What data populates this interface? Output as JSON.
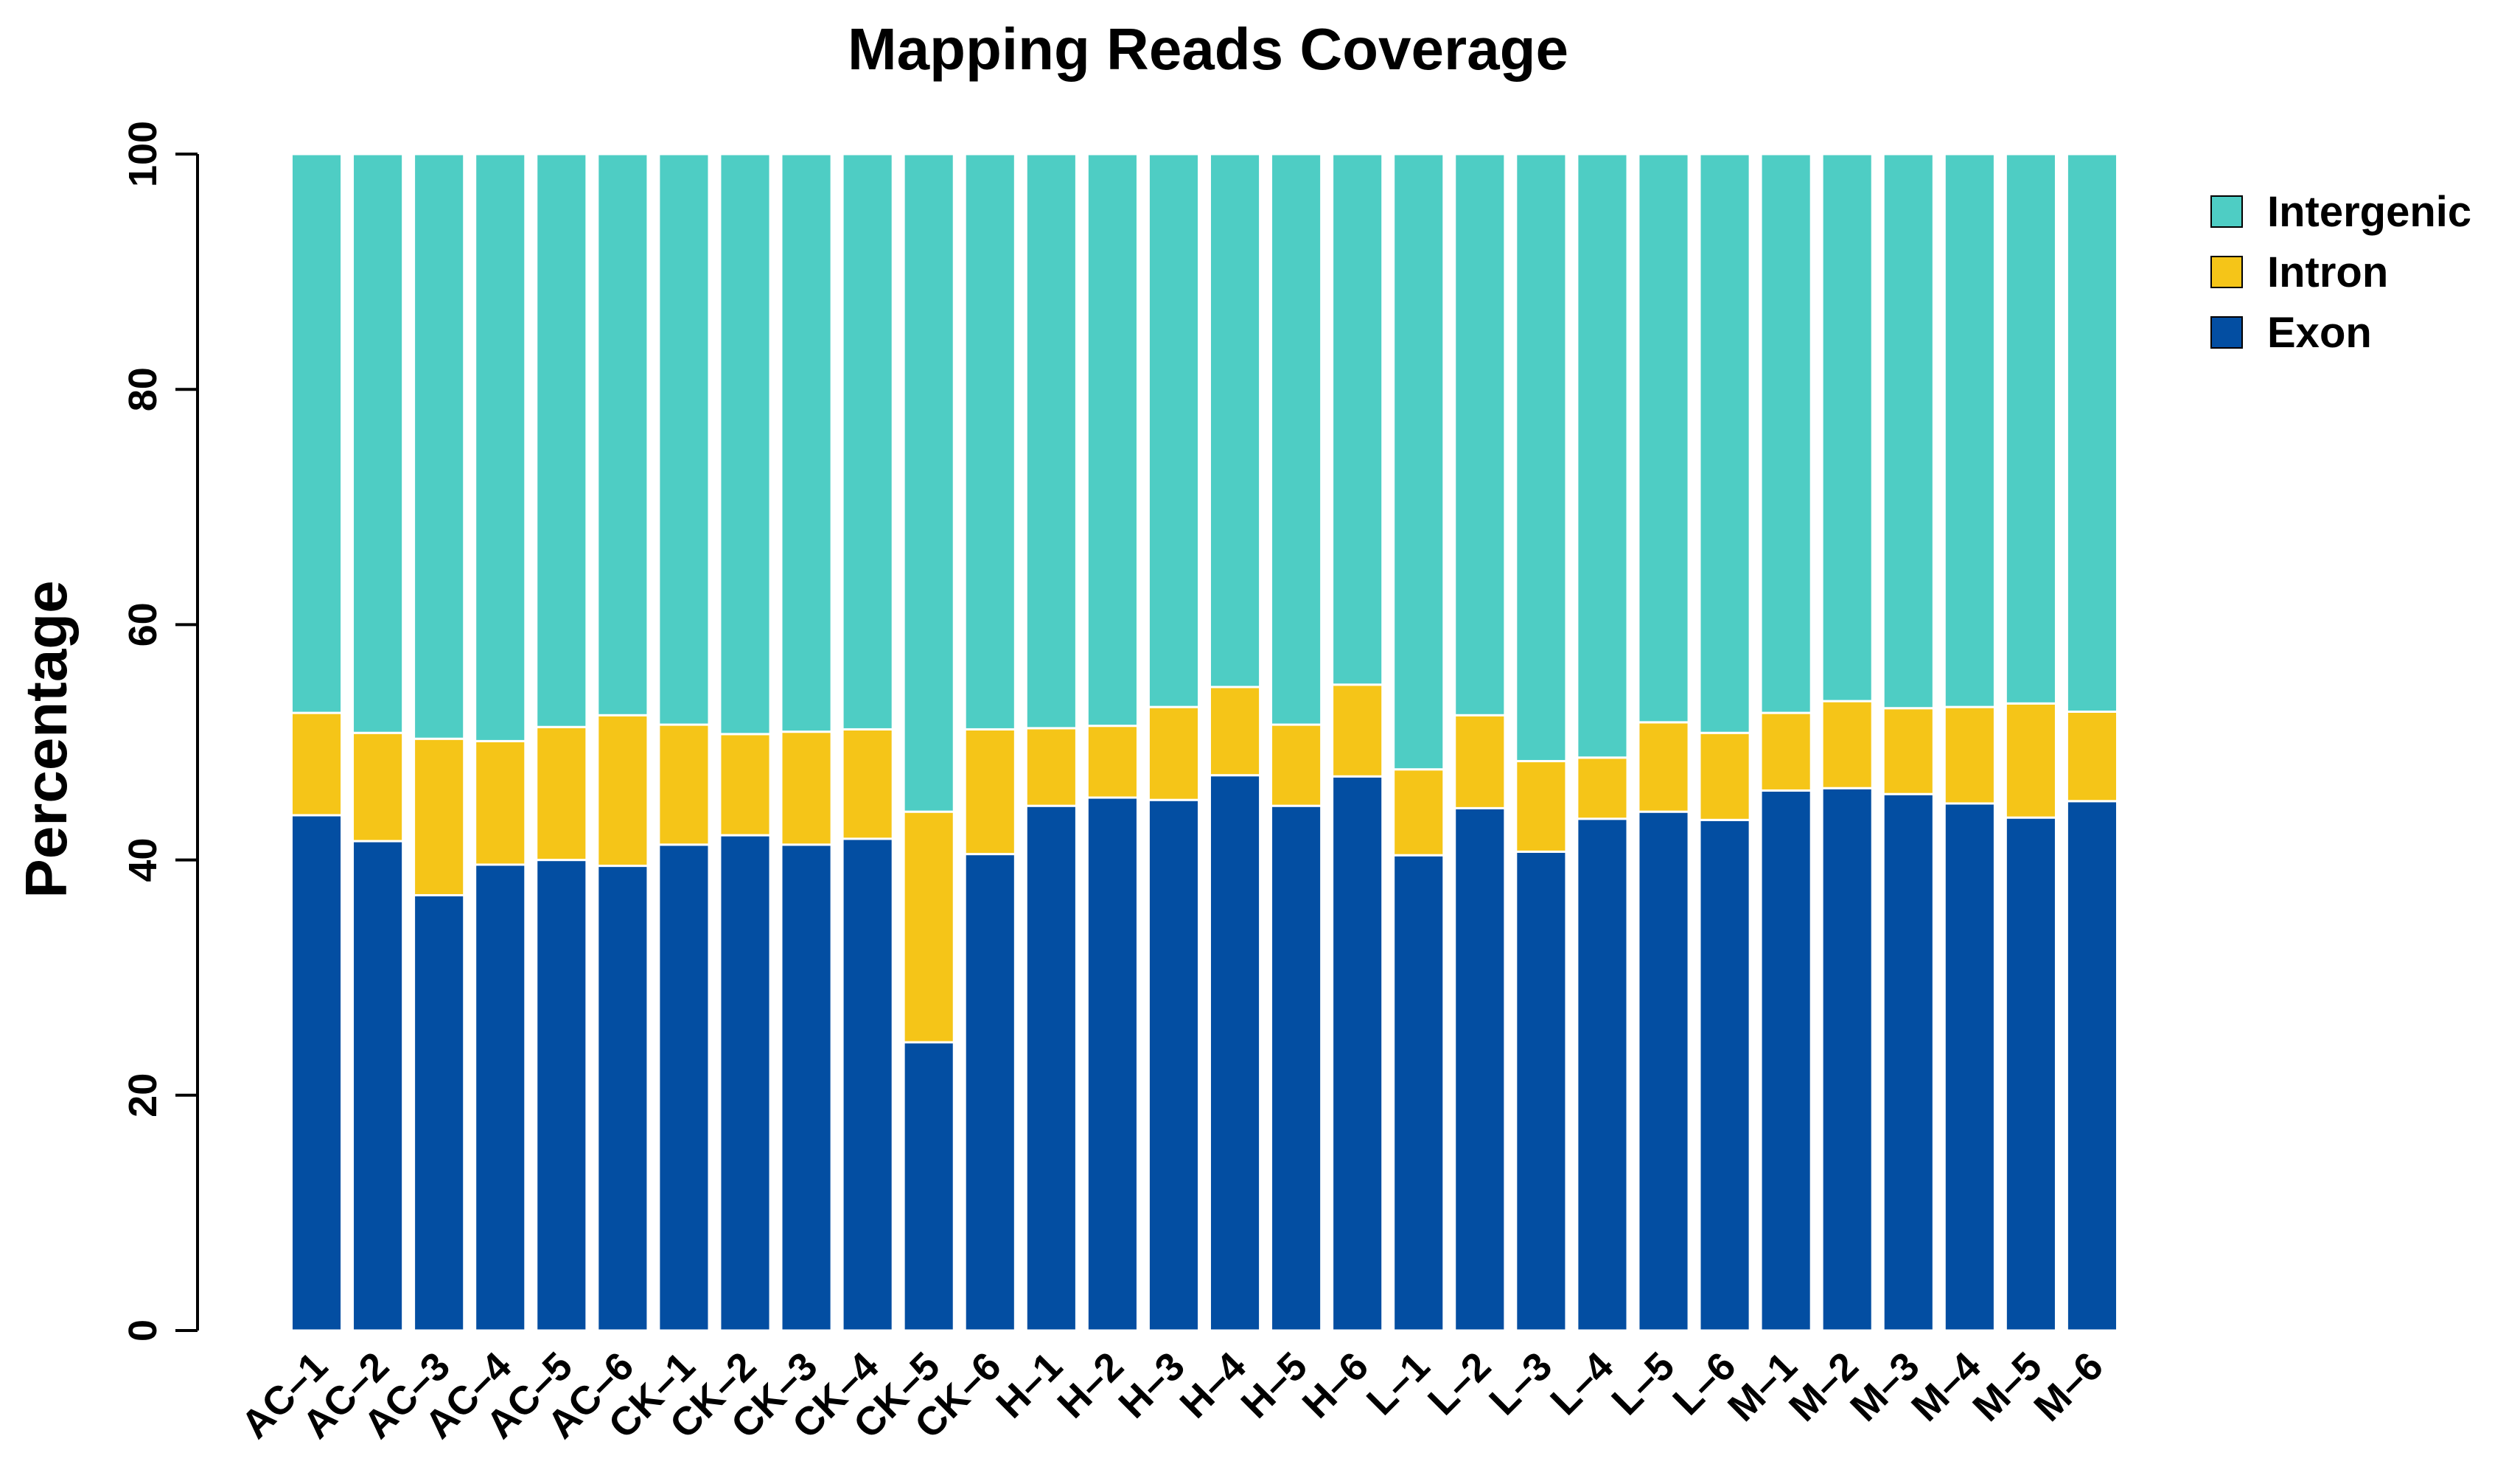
{
  "chart_data": {
    "type": "bar",
    "stacked": true,
    "title": "Mapping Reads Coverage",
    "xlabel": "",
    "ylabel": "Percentage",
    "ylim": [
      0,
      100
    ],
    "yticks": [
      0,
      20,
      40,
      60,
      80,
      100
    ],
    "legend_position": "top-right",
    "categories": [
      "AC–1",
      "AC–2",
      "AC–3",
      "AC–4",
      "AC–5",
      "AC–6",
      "CK–1",
      "CK–2",
      "CK–3",
      "CK–4",
      "CK–5",
      "CK–6",
      "H–1",
      "H–2",
      "H–3",
      "H–4",
      "H–5",
      "H–6",
      "L–1",
      "L–2",
      "L–3",
      "L–4",
      "L–5",
      "L–6",
      "M–1",
      "M–2",
      "M–3",
      "M–4",
      "M–5",
      "M–6"
    ],
    "series": [
      {
        "name": "Exon",
        "color": "#034EA2",
        "values": [
          43.8,
          41.6,
          37.0,
          39.6,
          40.0,
          39.5,
          41.3,
          42.1,
          41.3,
          41.8,
          24.5,
          40.5,
          44.6,
          45.3,
          45.1,
          47.2,
          44.6,
          47.1,
          40.4,
          44.4,
          40.7,
          43.5,
          44.1,
          43.4,
          45.9,
          46.1,
          45.6,
          44.8,
          43.6,
          45.0
        ]
      },
      {
        "name": "Intron",
        "color": "#F5C518",
        "values": [
          8.7,
          9.2,
          13.3,
          10.5,
          11.3,
          12.8,
          10.2,
          8.6,
          9.6,
          9.3,
          19.6,
          10.6,
          6.6,
          6.1,
          7.9,
          7.5,
          6.9,
          7.8,
          7.3,
          7.9,
          7.7,
          5.2,
          7.6,
          7.4,
          6.6,
          7.4,
          7.3,
          8.2,
          9.7,
          7.6
        ]
      },
      {
        "name": "Intergenic",
        "color": "#4ECDC4",
        "values": [
          47.5,
          49.2,
          49.7,
          49.9,
          48.7,
          47.7,
          48.5,
          49.3,
          49.1,
          48.9,
          55.9,
          48.9,
          48.8,
          48.6,
          47.0,
          45.3,
          48.5,
          45.1,
          52.3,
          47.7,
          51.6,
          51.3,
          48.3,
          49.2,
          47.5,
          46.5,
          47.1,
          47.0,
          46.7,
          47.4
        ]
      }
    ],
    "legend_order": [
      "Intergenic",
      "Intron",
      "Exon"
    ]
  }
}
